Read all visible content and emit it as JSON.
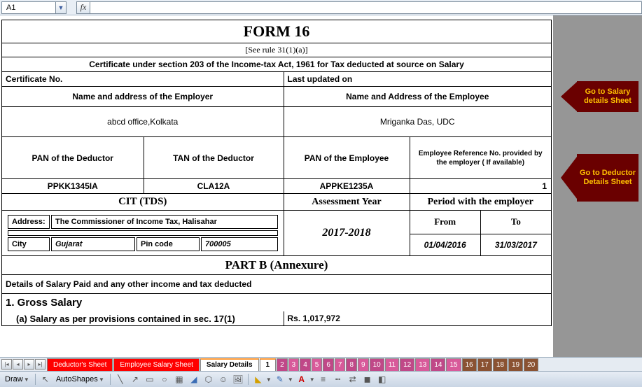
{
  "formula_bar": {
    "cell_ref": "A1",
    "fx_label": "fx"
  },
  "form": {
    "title": "FORM 16",
    "rule": "[See rule 31(1)(a)]",
    "certificate_desc": "Certificate under section 203 of the Income-tax Act, 1961 for Tax deducted at source on Salary",
    "cert_no_label": "Certificate No.",
    "last_updated_label": "Last updated on",
    "employer_name_header": "Name and address of the Employer",
    "employee_name_header": "Name and Address of the Employee",
    "employer_value": "abcd office,Kolkata",
    "employee_value": "Mriganka Das, UDC",
    "pan_deductor_label": "PAN of the Deductor",
    "tan_deductor_label": "TAN of the Deductor",
    "pan_employee_label": "PAN of the Employee",
    "emp_ref_label": "Employee Reference No. provided by the employer ( If available)",
    "pan_deductor_value": "PPKK1345IA",
    "tan_deductor_value": "CLA12A",
    "pan_employee_value": "APPKE1235A",
    "emp_ref_value": "1",
    "cit_header": "CIT (TDS)",
    "assessment_year_label": "Assessment Year",
    "period_employer_label": "Period with the employer",
    "address_label": "Address:",
    "address_value": "The Commissioner of Income Tax, Halisahar",
    "city_label": "City",
    "city_value": "Gujarat",
    "pin_label": "Pin code",
    "pin_value": "700005",
    "assessment_year_value": "2017-2018",
    "from_label": "From",
    "to_label": "To",
    "from_value": "01/04/2016",
    "to_value": "31/03/2017",
    "partb_title": "PART B (Annexure)",
    "details_line": "Details of Salary Paid and any other income and tax deducted",
    "gross_salary_label": "1.  Gross Salary",
    "salary_provisions_label": "(a) Salary as per provisions contained in sec. 17(1)",
    "salary_provisions_value": "Rs. 1,017,972"
  },
  "arrows": {
    "salary": "Go to Salary details Sheet",
    "deductor": "Go to Deductor Details  Sheet"
  },
  "tabs": {
    "deductor": "Deductor's Sheet",
    "employee": "Employee Salary Sheet",
    "salary": "Salary Details",
    "nums": [
      "1",
      "2",
      "3",
      "4",
      "5",
      "6",
      "7",
      "8",
      "9",
      "10",
      "11",
      "12",
      "13",
      "14",
      "15",
      "16",
      "17",
      "18",
      "19",
      "20"
    ]
  },
  "draw": {
    "draw": "Draw",
    "autoshapes": "AutoShapes"
  }
}
